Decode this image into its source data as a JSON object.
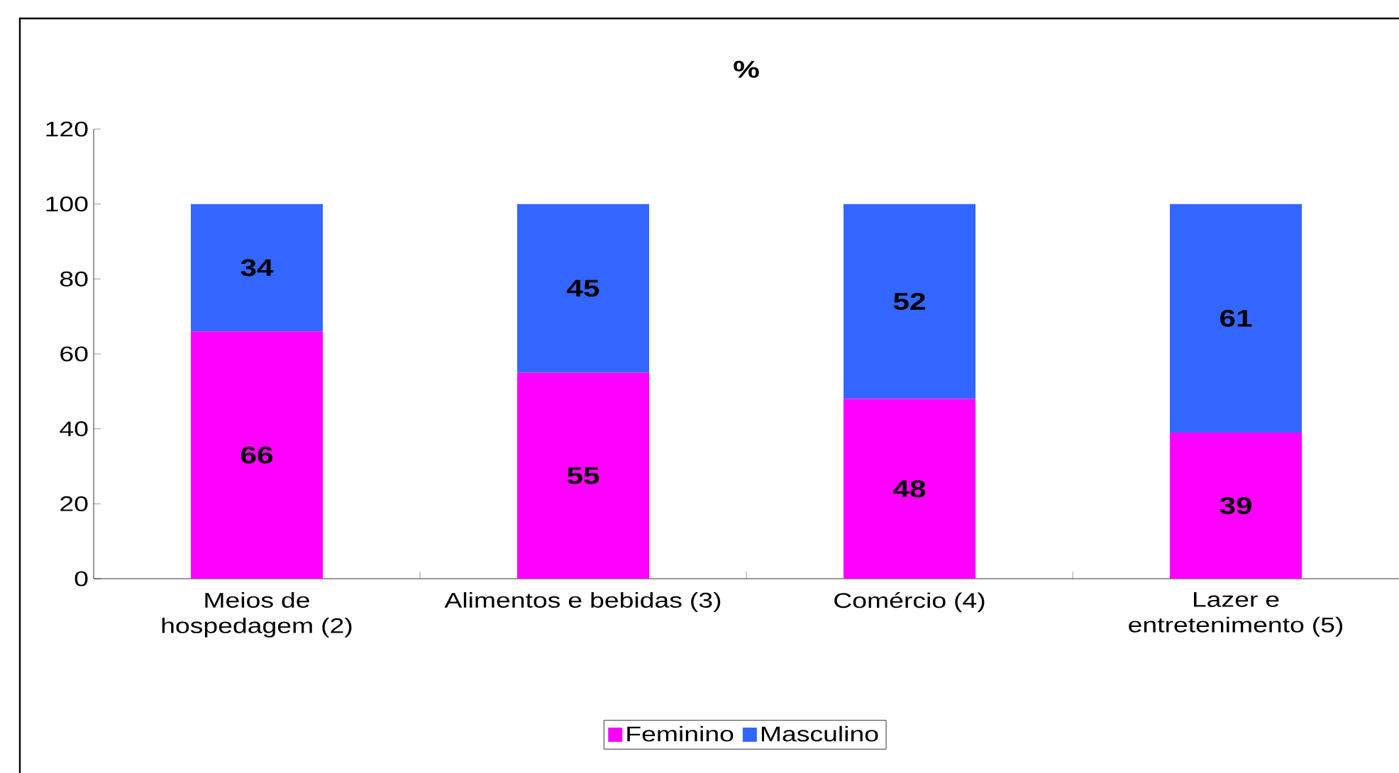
{
  "chart_data": {
    "type": "bar",
    "stacked": true,
    "title": "%",
    "categories": [
      "Meios de hospedagem (2)",
      "Alimentos e bebidas (3)",
      "Comércio (4)",
      "Lazer e entretenimento (5)"
    ],
    "series": [
      {
        "name": "Feminino",
        "color": "#ff00ff",
        "values": [
          66,
          55,
          48,
          39
        ]
      },
      {
        "name": "Masculino",
        "color": "#3366ff",
        "values": [
          34,
          45,
          52,
          61
        ]
      }
    ],
    "ylim": [
      0,
      120
    ],
    "yticks": [
      0,
      20,
      40,
      60,
      80,
      100,
      120
    ],
    "data_labels": true,
    "legend": "bottom",
    "grid": false
  }
}
